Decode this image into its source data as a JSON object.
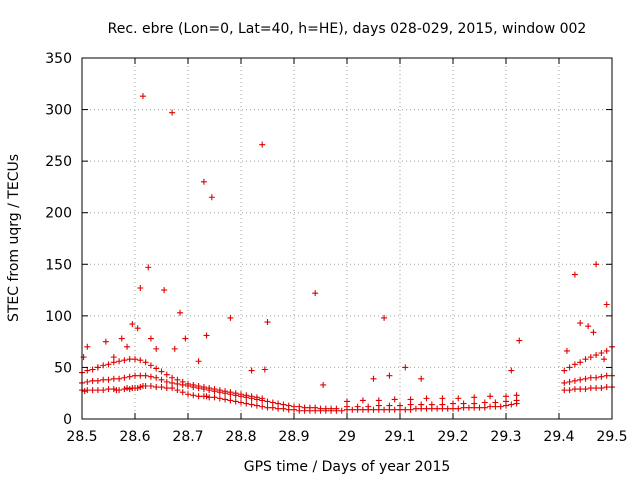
{
  "chart_data": {
    "type": "scatter",
    "title": "Rec. ebre (Lon=0, Lat=40, h=HE), days 028-029, 2015, window 002",
    "xlabel": "GPS time / Days of year 2015",
    "ylabel": "STEC from uqrg / TECUs",
    "xlim": [
      28.5,
      29.5
    ],
    "ylim": [
      0,
      350
    ],
    "xticks": [
      "28.5",
      "28.6",
      "28.7",
      "28.8",
      "28.9",
      "29",
      "29.1",
      "29.2",
      "29.3",
      "29.4",
      "29.5"
    ],
    "yticks": [
      "0",
      "50",
      "100",
      "150",
      "200",
      "250",
      "300",
      "350"
    ],
    "grid": true,
    "marker": "plus",
    "color": "#e00000",
    "series": [
      {
        "x": [
          28.5,
          28.505,
          28.51,
          28.52,
          28.53,
          28.54,
          28.55,
          28.56,
          28.565,
          28.57,
          28.58,
          28.585,
          28.59,
          28.595,
          28.6,
          28.605,
          28.61,
          28.615,
          28.62,
          28.63,
          28.64,
          28.65,
          28.66,
          28.67,
          28.68,
          28.69,
          28.7,
          28.71,
          28.72,
          28.73,
          28.735,
          28.74,
          28.75,
          28.76,
          28.77,
          28.78,
          28.79,
          28.8,
          28.81,
          28.82,
          28.83,
          28.84,
          28.85,
          28.86,
          28.87,
          28.88,
          28.89,
          28.9,
          28.91,
          28.92,
          28.93,
          28.94,
          28.95,
          28.96,
          28.97,
          28.98,
          28.99,
          28.5,
          28.51,
          28.52,
          28.53,
          28.54,
          28.55,
          28.56,
          28.57,
          28.58,
          28.59,
          28.6,
          28.61,
          28.62,
          28.63,
          28.64,
          28.65,
          28.66,
          28.67,
          28.68,
          28.69,
          28.7,
          28.71,
          28.72,
          28.73,
          28.74,
          28.75,
          28.76,
          28.77,
          28.78,
          28.79,
          28.8,
          28.81,
          28.82,
          28.83,
          28.84,
          28.85,
          28.86,
          28.87,
          28.88,
          28.89,
          28.9,
          28.91,
          28.92,
          28.93,
          28.94,
          28.95,
          28.96,
          28.97,
          28.98,
          28.5,
          28.51,
          28.52,
          28.53,
          28.54,
          28.55,
          28.56,
          28.57,
          28.58,
          28.59,
          28.6,
          28.61,
          28.62,
          28.63,
          28.64,
          28.65,
          28.66,
          28.67,
          28.68,
          28.69,
          28.7,
          28.71,
          28.72,
          28.73,
          28.74,
          28.75,
          28.76,
          28.77,
          28.78,
          28.79,
          28.8,
          28.81,
          28.82,
          28.83,
          28.84,
          29.0,
          29.01,
          29.02,
          29.03,
          29.04,
          29.05,
          29.06,
          29.07,
          29.08,
          29.09,
          29.1,
          29.11,
          29.12,
          29.13,
          29.14,
          29.15,
          29.16,
          29.17,
          29.18,
          29.19,
          29.2,
          29.21,
          29.22,
          29.23,
          29.24,
          29.25,
          29.26,
          29.27,
          29.28,
          29.29,
          29.3,
          29.31,
          29.32,
          29.0,
          29.02,
          29.04,
          29.06,
          29.08,
          29.1,
          29.12,
          29.14,
          29.16,
          29.18,
          29.2,
          29.22,
          29.24,
          29.26,
          29.28,
          29.3,
          29.32,
          29.0,
          29.03,
          29.06,
          29.09,
          29.12,
          29.15,
          29.18,
          29.21,
          29.24,
          29.27,
          29.3,
          29.32,
          29.41,
          29.42,
          29.43,
          29.44,
          29.45,
          29.46,
          29.47,
          29.48,
          29.49,
          29.5,
          29.41,
          29.42,
          29.43,
          29.44,
          29.45,
          29.46,
          29.47,
          29.48,
          29.49,
          29.5,
          29.41,
          29.42,
          29.43,
          29.44,
          29.45,
          29.46,
          29.47,
          29.48,
          29.49,
          29.5,
          28.503,
          28.51,
          28.53,
          28.545,
          28.56,
          28.575,
          28.585,
          28.595,
          28.605,
          28.61,
          28.615,
          28.625,
          28.63,
          28.64,
          28.655,
          28.67,
          28.675,
          28.685,
          28.695,
          28.72,
          28.73,
          28.735,
          28.745,
          28.78,
          28.82,
          28.84,
          28.845,
          28.85,
          28.94,
          28.955,
          29.05,
          29.07,
          29.08,
          29.11,
          29.14,
          29.31,
          29.325,
          29.415,
          29.43,
          29.44,
          29.455,
          29.465,
          29.47,
          29.485,
          29.49
        ],
        "y": [
          28,
          27,
          28,
          28,
          28,
          28,
          29,
          29,
          28,
          28,
          29,
          30,
          29,
          30,
          30,
          30,
          31,
          32,
          32,
          32,
          31,
          31,
          30,
          30,
          28,
          26,
          24,
          23,
          22,
          22,
          22,
          21,
          21,
          20,
          19,
          18,
          17,
          16,
          15,
          14,
          13,
          12,
          11,
          11,
          10,
          10,
          9,
          9,
          8,
          8,
          8,
          8,
          8,
          8,
          8,
          8,
          8,
          35,
          36,
          37,
          37,
          38,
          38,
          39,
          39,
          40,
          41,
          42,
          42,
          42,
          41,
          40,
          38,
          36,
          35,
          34,
          33,
          32,
          31,
          30,
          29,
          28,
          27,
          26,
          25,
          24,
          23,
          22,
          21,
          20,
          19,
          18,
          17,
          16,
          15,
          14,
          13,
          12,
          12,
          11,
          11,
          11,
          10,
          10,
          10,
          10,
          45,
          47,
          48,
          50,
          52,
          53,
          55,
          56,
          57,
          58,
          58,
          57,
          55,
          52,
          49,
          46,
          43,
          40,
          38,
          36,
          34,
          33,
          32,
          31,
          30,
          29,
          28,
          27,
          26,
          25,
          24,
          23,
          22,
          21,
          20,
          9,
          9,
          9,
          9,
          9,
          9,
          9,
          9,
          9,
          9,
          9,
          9,
          9,
          10,
          10,
          10,
          10,
          10,
          10,
          10,
          10,
          10,
          11,
          11,
          11,
          11,
          11,
          12,
          12,
          12,
          13,
          14,
          15,
          12,
          12,
          12,
          13,
          13,
          13,
          14,
          14,
          14,
          14,
          15,
          15,
          15,
          16,
          16,
          17,
          18,
          17,
          18,
          18,
          19,
          19,
          20,
          20,
          20,
          21,
          22,
          22,
          23,
          28,
          28,
          29,
          29,
          29,
          30,
          30,
          30,
          31,
          31,
          35,
          36,
          37,
          38,
          39,
          40,
          40,
          41,
          42,
          42,
          47,
          50,
          53,
          55,
          58,
          60,
          62,
          64,
          66,
          70,
          60,
          70,
          50,
          75,
          60,
          78,
          70,
          92,
          88,
          127,
          313,
          147,
          78,
          68,
          125,
          297,
          68,
          103,
          78,
          56,
          230,
          81,
          215,
          98,
          47,
          266,
          48,
          94,
          122,
          33,
          39,
          98,
          42,
          50,
          39,
          47,
          76,
          66,
          140,
          93,
          90,
          84,
          150,
          58,
          111
        ]
      }
    ]
  }
}
